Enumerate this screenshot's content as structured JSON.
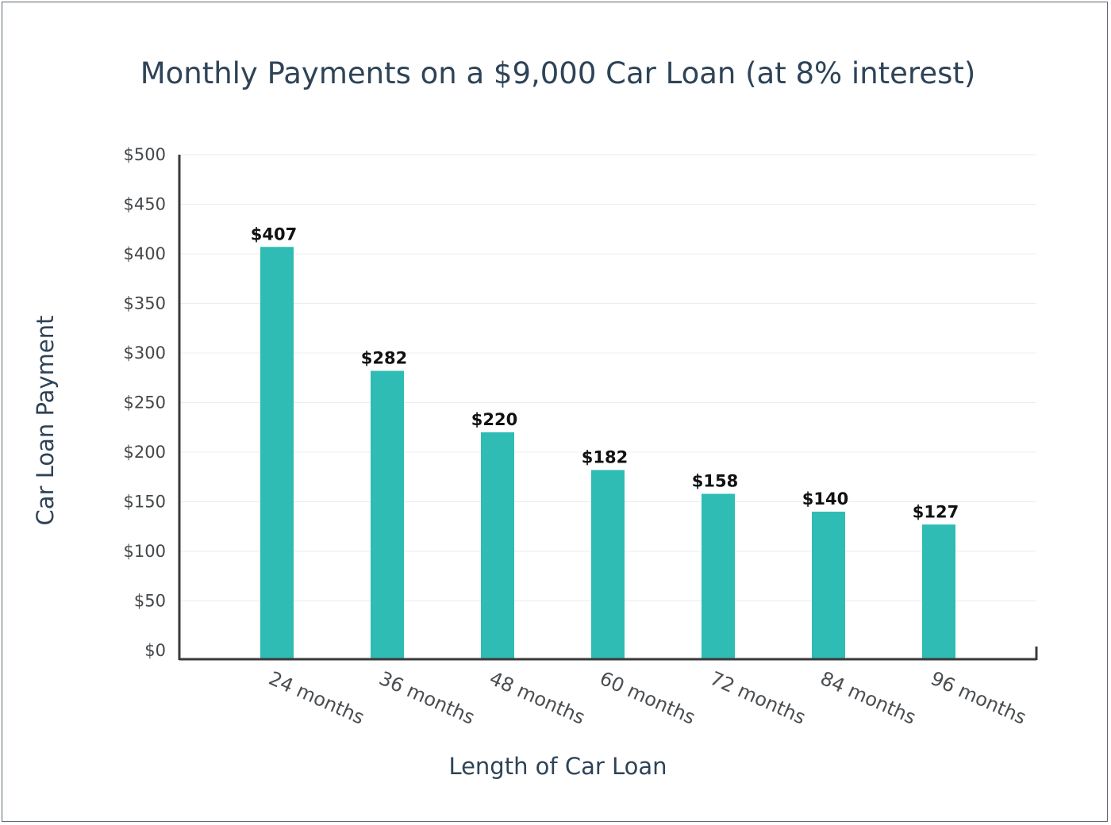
{
  "chart_data": {
    "type": "bar",
    "title": "Monthly Payments on a $9,000 Car Loan (at 8% interest)",
    "xlabel": "Length of Car Loan",
    "ylabel": "Car Loan Payment",
    "categories": [
      "24 months",
      "36 months",
      "48 months",
      "60 months",
      "72 months",
      "84 months",
      "96 months"
    ],
    "values": [
      407,
      282,
      220,
      182,
      158,
      140,
      127
    ],
    "data_labels": [
      "$407",
      "$282",
      "$220",
      "$182",
      "$158",
      "$140",
      "$127"
    ],
    "yticks": [
      "$0",
      "$50",
      "$100",
      "$150",
      "$200",
      "$250",
      "$300",
      "$350",
      "$400",
      "$450",
      "$500"
    ],
    "ylim": [
      0,
      500
    ],
    "grid": true,
    "colors": {
      "bar": "#2ebcb4",
      "title": "#2e4357",
      "grid": "#ececec",
      "axis": "#3a3a3a"
    }
  }
}
